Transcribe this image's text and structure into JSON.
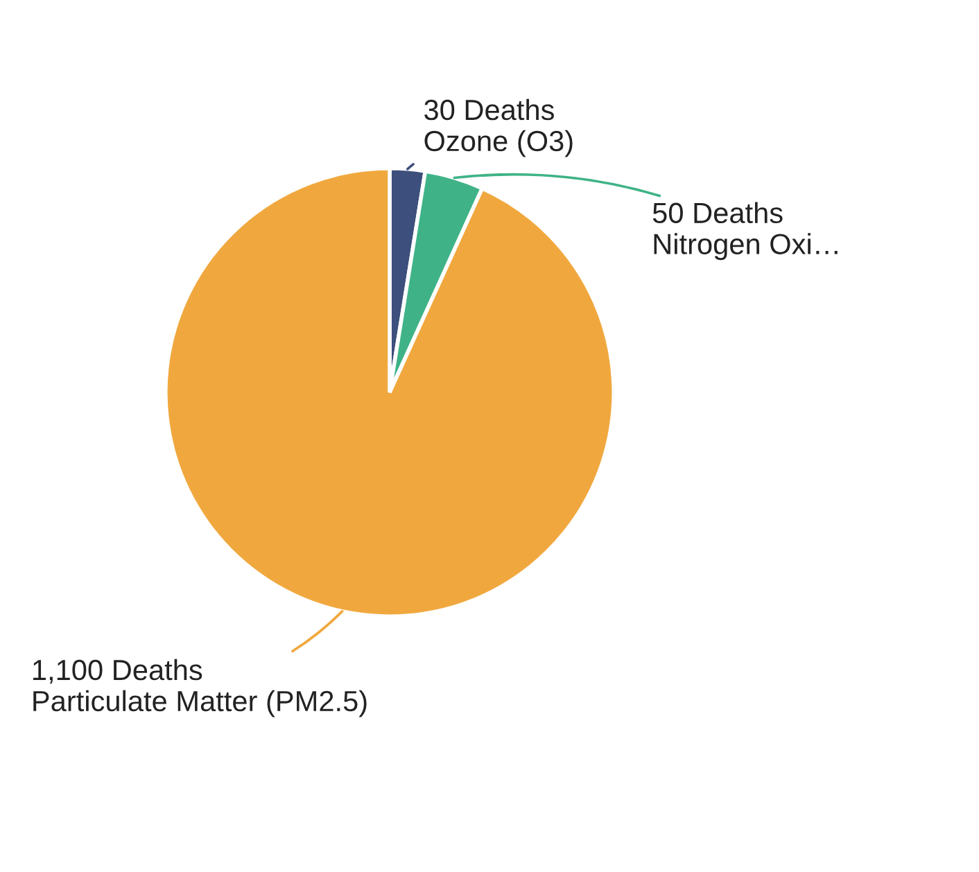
{
  "chart_data": {
    "type": "pie",
    "categories": [
      "Ozone (O3)",
      "Nitrogen Oxi…",
      "Particulate Matter (PM2.5)"
    ],
    "values": [
      30,
      50,
      1100
    ],
    "value_labels": [
      "30 Deaths",
      "50 Deaths",
      "1,100 Deaths"
    ],
    "colors": [
      "#3d4f7c",
      "#3fb387",
      "#f0a83e"
    ],
    "legend": false
  }
}
